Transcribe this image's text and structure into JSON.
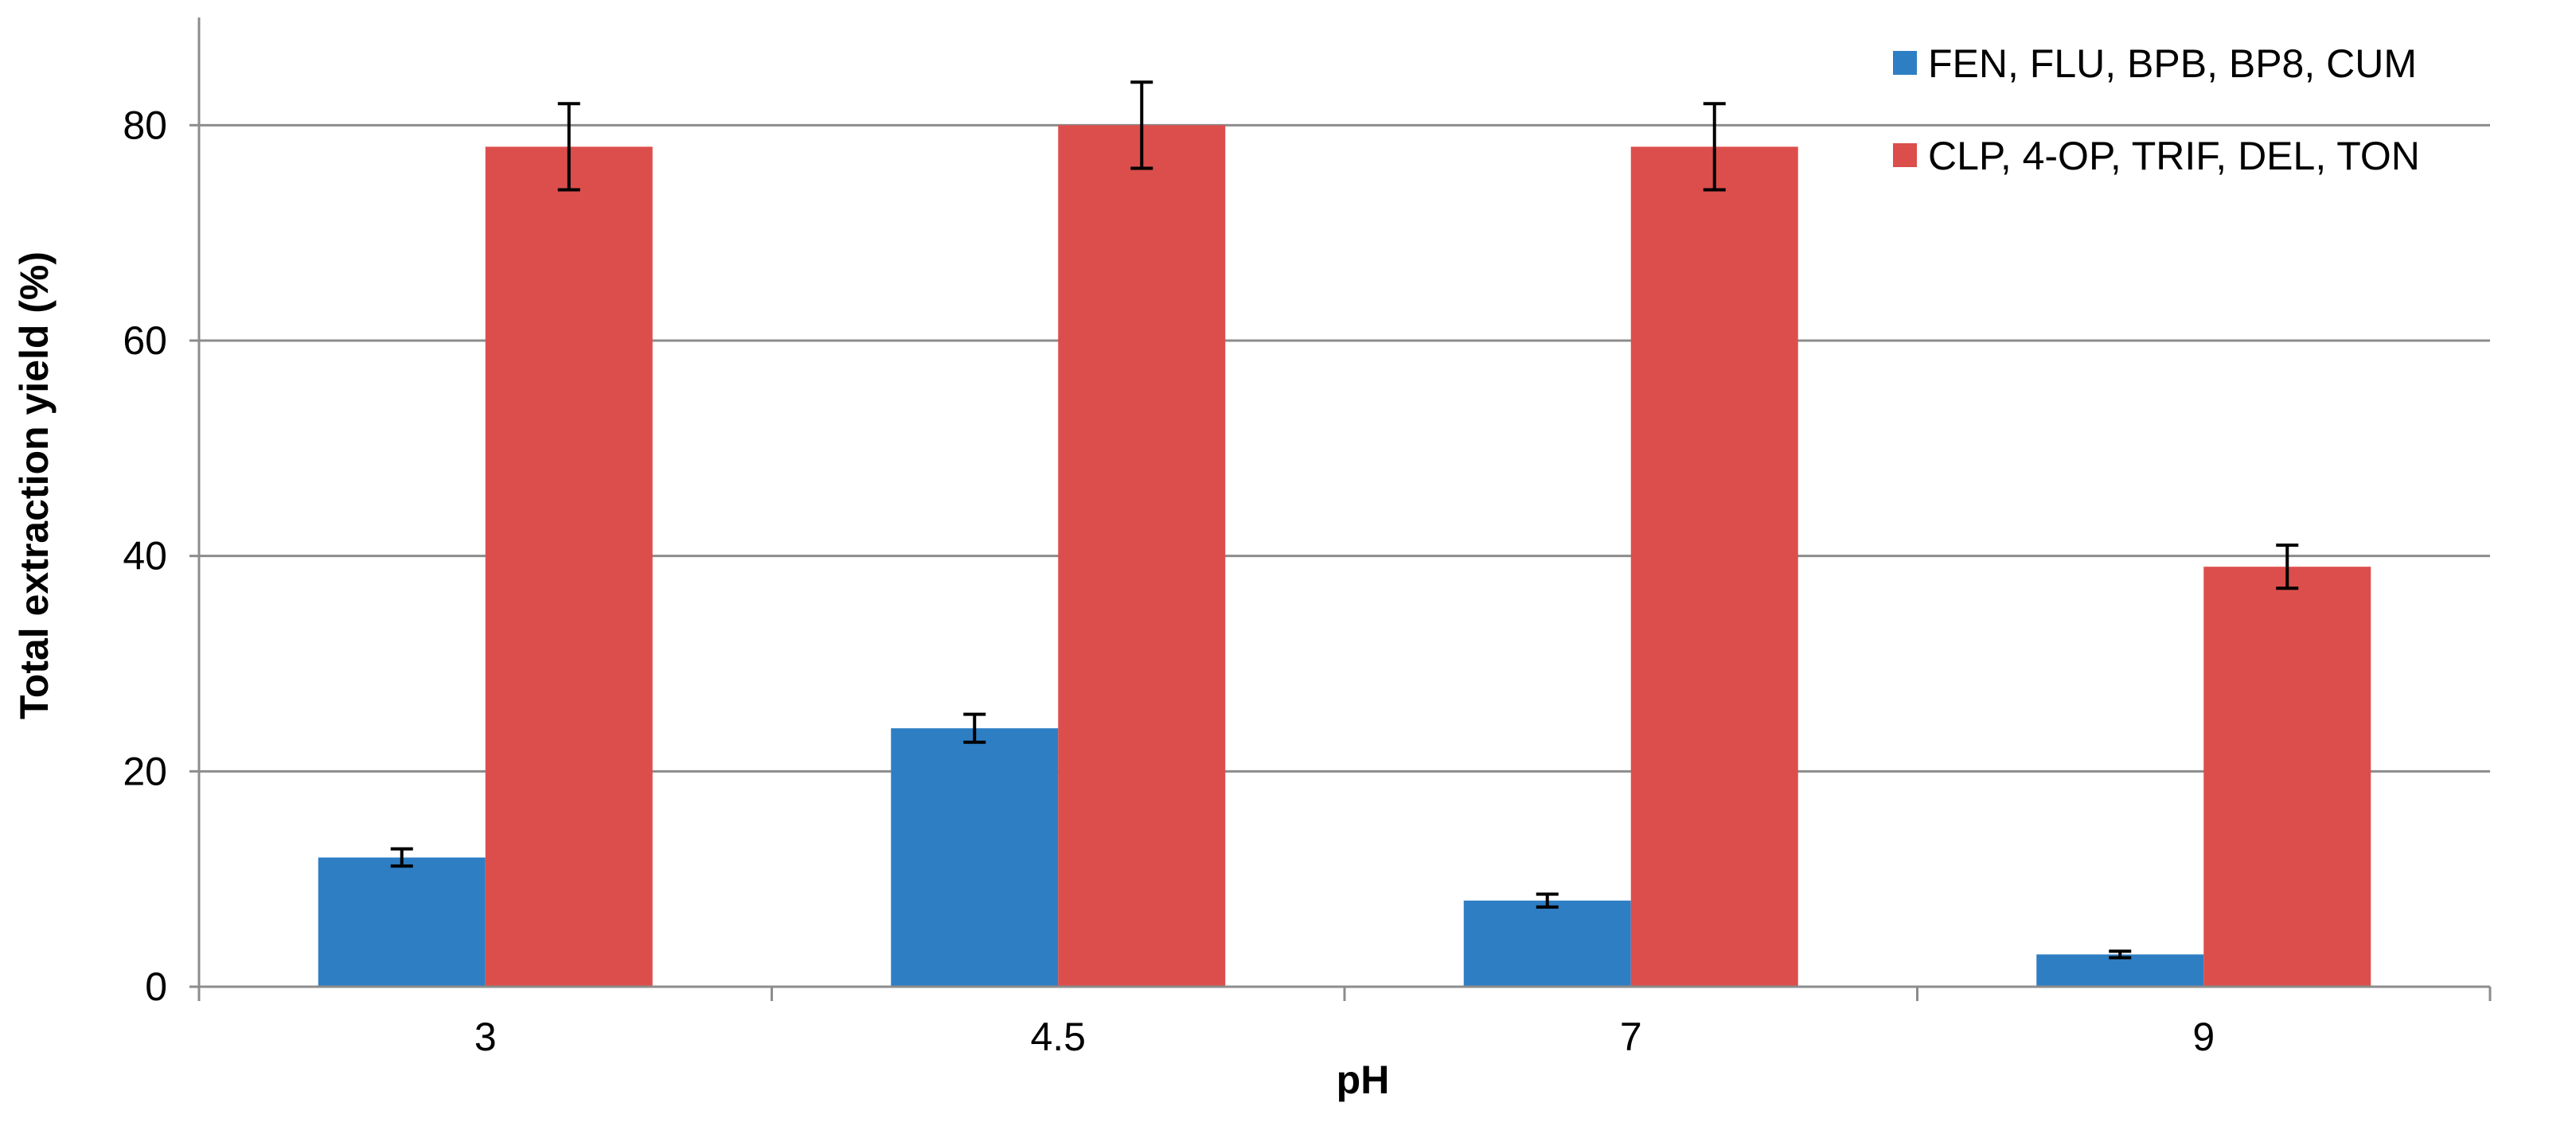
{
  "chart_data": {
    "type": "bar",
    "title": "",
    "xlabel": "pH",
    "ylabel": "Total extraction yield (%)",
    "categories": [
      "3",
      "4.5",
      "7",
      "9"
    ],
    "ylim": [
      0,
      90
    ],
    "yticks": [
      0,
      20,
      40,
      60,
      80
    ],
    "grid": true,
    "legend_position": "top-right",
    "series": [
      {
        "name": "FEN, FLU, BPB, BP8, CUM",
        "color": "#2e7ec4",
        "values": [
          12,
          24,
          8,
          3
        ],
        "errors": [
          0.8,
          1.3,
          0.6,
          0.3
        ]
      },
      {
        "name": "CLP, 4-OP, TRIF, DEL, TON",
        "color": "#dc4e4b",
        "values": [
          78,
          80,
          78,
          39
        ],
        "errors": [
          4,
          4,
          4,
          2
        ]
      }
    ]
  }
}
